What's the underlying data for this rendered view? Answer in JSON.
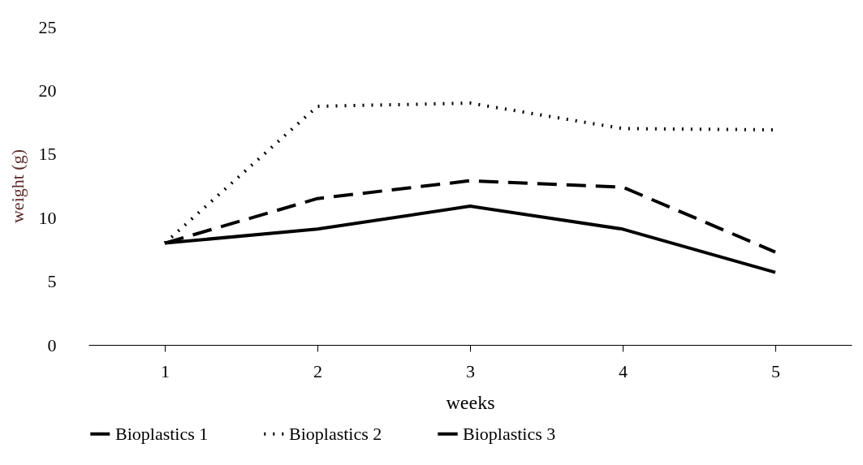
{
  "chart_data": {
    "type": "line",
    "xlabel": "weeks",
    "ylabel": "weight (g)",
    "categories": [
      "1",
      "2",
      "3",
      "4",
      "5"
    ],
    "ylim": [
      0,
      25
    ],
    "yticks": [
      0,
      5,
      10,
      15,
      20,
      25
    ],
    "grid": false,
    "legend": "bottom",
    "marker": "none",
    "series": [
      {
        "name": "Bioplastics 1",
        "color": "#000000",
        "line_style": "dashed",
        "values": [
          8.0,
          11.5,
          12.9,
          12.4,
          7.3
        ]
      },
      {
        "name": "Bioplastics 2",
        "color": "#000000",
        "line_style": "dotted",
        "values": [
          8.0,
          18.75,
          19.0,
          17.0,
          16.9
        ]
      },
      {
        "name": "Bioplastics 3",
        "color": "#000000",
        "line_style": "solid",
        "values": [
          8.0,
          9.1,
          10.9,
          9.1,
          5.7
        ]
      }
    ]
  }
}
